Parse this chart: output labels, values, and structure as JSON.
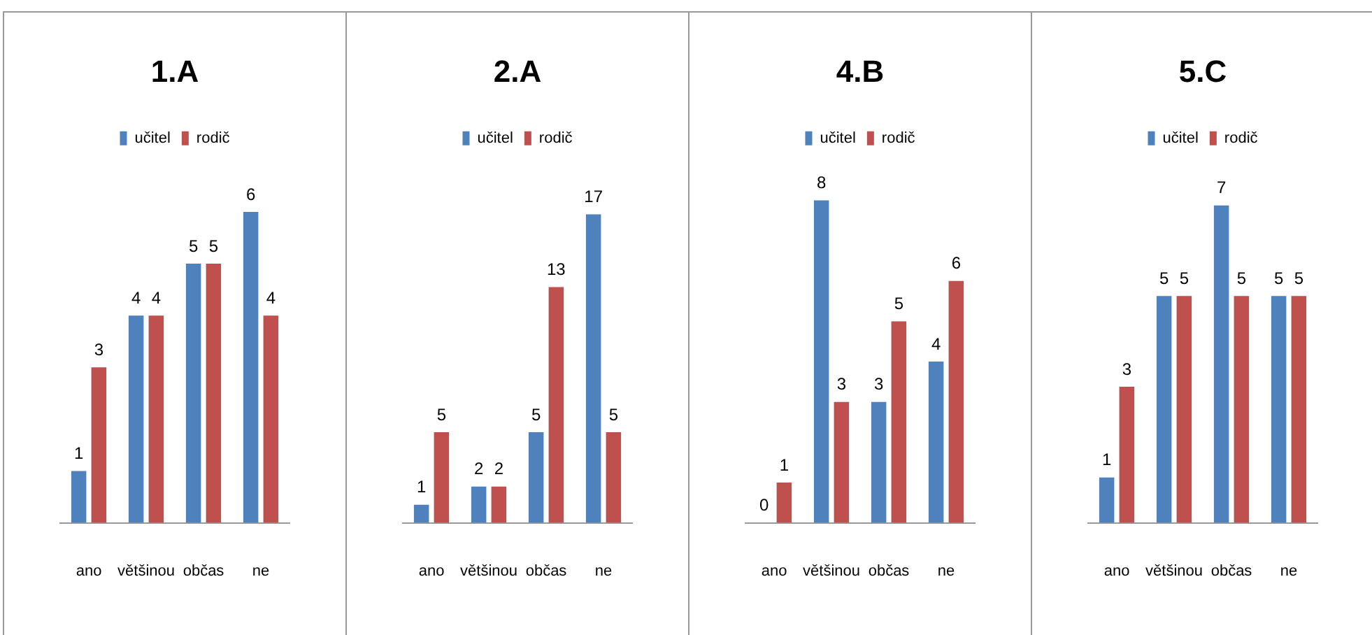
{
  "chart_data": [
    {
      "type": "bar",
      "title": "1.A",
      "categories": [
        "ano",
        "většinou",
        "občas",
        "ne"
      ],
      "series": [
        {
          "name": "učitel",
          "color": "#4f81bd",
          "values": [
            1,
            4,
            5,
            6
          ]
        },
        {
          "name": "rodič",
          "color": "#c0504d",
          "values": [
            3,
            4,
            5,
            4
          ]
        }
      ],
      "data_labels": true,
      "legend": "top",
      "grid": false,
      "tick_labels": "x"
    },
    {
      "type": "bar",
      "title": "2.A",
      "categories": [
        "ano",
        "většinou",
        "občas",
        "ne"
      ],
      "series": [
        {
          "name": "učitel",
          "color": "#4f81bd",
          "values": [
            1,
            2,
            5,
            17
          ]
        },
        {
          "name": "rodič",
          "color": "#c0504d",
          "values": [
            5,
            2,
            13,
            5
          ]
        }
      ],
      "data_labels": true,
      "legend": "top",
      "grid": false,
      "tick_labels": "x"
    },
    {
      "type": "bar",
      "title": "4.B",
      "categories": [
        "ano",
        "většinou",
        "občas",
        "ne"
      ],
      "series": [
        {
          "name": "učitel",
          "color": "#4f81bd",
          "values": [
            0,
            8,
            3,
            4
          ]
        },
        {
          "name": "rodič",
          "color": "#c0504d",
          "values": [
            1,
            3,
            5,
            6
          ]
        }
      ],
      "data_labels": true,
      "legend": "top",
      "grid": false,
      "tick_labels": "x"
    },
    {
      "type": "bar",
      "title": "5.C",
      "categories": [
        "ano",
        "většinou",
        "občas",
        "ne"
      ],
      "series": [
        {
          "name": "učitel",
          "color": "#4f81bd",
          "values": [
            1,
            5,
            7,
            5
          ]
        },
        {
          "name": "rodič",
          "color": "#c0504d",
          "values": [
            3,
            5,
            5,
            5
          ]
        }
      ],
      "data_labels": true,
      "legend": "top",
      "grid": false,
      "tick_labels": "x"
    }
  ]
}
